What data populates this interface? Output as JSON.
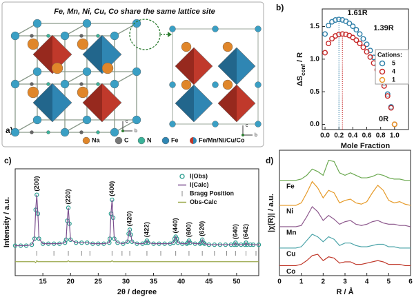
{
  "figure_a": {
    "panel_label": "a)",
    "title": "Fe, Mn, Ni, Cu, Co share the same lattice site",
    "legend": [
      "Na",
      "C",
      "N",
      "Fe",
      "Fe/Mn/Ni/Cu/Co"
    ],
    "left_axes": [
      "c",
      "b"
    ],
    "right_axes": [
      "c",
      "b"
    ]
  },
  "chart_data": [
    {
      "type": "scatter",
      "panel_label": "b)",
      "xlabel": "Mole Fraction",
      "ylabel": {
        "main": "ΔS",
        "sub": "conf",
        "tail": " / R"
      },
      "xlim": [
        -0.04,
        1.2
      ],
      "ylim": [
        -0.08,
        1.77
      ],
      "xticks": [
        {
          "value": 0,
          "label": "0.0"
        },
        0.2,
        0.4,
        0.6,
        0.8,
        {
          "value": 1,
          "label": "1.0"
        }
      ],
      "yticks": [
        {
          "value": 0,
          "label": "0.0"
        },
        0.5,
        {
          "value": 1,
          "label": "1.0"
        },
        1.5
      ],
      "legend_title": "Cations:",
      "legend": "right",
      "series": [
        {
          "name": "5",
          "color": "#2f7fa8",
          "x": [
            0,
            0.05,
            0.1,
            0.15,
            0.2,
            0.25,
            0.3,
            0.35,
            0.4,
            0.45,
            0.5,
            0.55,
            0.6,
            0.65,
            0.7,
            0.75,
            0.8,
            0.85,
            0.9,
            0.95,
            1
          ],
          "values": [
            1.386,
            1.516,
            1.573,
            1.601,
            1.609,
            1.602,
            1.581,
            1.549,
            1.505,
            1.451,
            1.386,
            1.312,
            1.228,
            1.133,
            1.027,
            0.909,
            0.778,
            0.631,
            0.464,
            0.268,
            0
          ]
        },
        {
          "name": "4",
          "color": "#c62828",
          "x": [
            0,
            0.05,
            0.1,
            0.15,
            0.2,
            0.25,
            0.3,
            0.35,
            0.4,
            0.45,
            0.5,
            0.55,
            0.6,
            0.65,
            0.7,
            0.75,
            0.8,
            0.85,
            0.9,
            0.95,
            1
          ],
          "values": [
            1.099,
            1.242,
            1.314,
            1.357,
            1.379,
            1.386,
            1.38,
            1.362,
            1.332,
            1.292,
            1.242,
            1.183,
            1.113,
            1.032,
            0.94,
            0.837,
            0.72,
            0.588,
            0.435,
            0.253,
            0
          ]
        },
        {
          "name": "1",
          "color": "#e8962a",
          "x": [
            1
          ],
          "values": [
            0
          ]
        }
      ],
      "annotations": [
        "1.61R",
        "1.39R",
        "0R"
      ],
      "reference_lines": [
        0.2,
        0.25
      ]
    },
    {
      "type": "line",
      "panel_label": "c)",
      "xlabel": "2θ / degree",
      "ylabel": "Intensity / a.u.",
      "xlim": [
        10,
        54
      ],
      "ylim": [
        0,
        1.07
      ],
      "xticks": [
        15,
        20,
        25,
        30,
        35,
        40,
        45,
        50
      ],
      "x": [
        10,
        11,
        12,
        13,
        13.5,
        13.7,
        13.9,
        14.1,
        14.3,
        15,
        16,
        17,
        18,
        19,
        19.2,
        19.4,
        19.6,
        19.8,
        20,
        21,
        22,
        23,
        24,
        25,
        26,
        27,
        27.1,
        27.3,
        27.5,
        27.7,
        27.9,
        28.5,
        29.5,
        30.3,
        30.5,
        30.7,
        30.9,
        31.1,
        32,
        33,
        33.6,
        33.8,
        34,
        35,
        36,
        37,
        38,
        38.6,
        38.8,
        39,
        39.2,
        39.4,
        40.2,
        41,
        41.2,
        41.4,
        41.6,
        42.5,
        43.4,
        43.6,
        43.8,
        44,
        44.2,
        45,
        46,
        47,
        48,
        49,
        49.6,
        49.8,
        50,
        50.8,
        51.5,
        51.7,
        51.9,
        52.5,
        53,
        54
      ],
      "series": [
        {
          "name": "I(Obs)",
          "color": "#2a9d8f",
          "style": "markers",
          "values": [
            0.3,
            0.3,
            0.3,
            0.31,
            0.37,
            0.66,
            0.81,
            0.62,
            0.37,
            0.32,
            0.32,
            0.32,
            0.32,
            0.33,
            0.36,
            0.55,
            0.68,
            0.52,
            0.36,
            0.33,
            0.33,
            0.33,
            0.32,
            0.32,
            0.32,
            0.33,
            0.37,
            0.62,
            0.76,
            0.58,
            0.37,
            0.33,
            0.32,
            0.34,
            0.42,
            0.46,
            0.41,
            0.34,
            0.32,
            0.32,
            0.33,
            0.35,
            0.33,
            0.32,
            0.32,
            0.32,
            0.32,
            0.33,
            0.37,
            0.39,
            0.37,
            0.33,
            0.32,
            0.32,
            0.33,
            0.35,
            0.33,
            0.32,
            0.32,
            0.33,
            0.36,
            0.33,
            0.32,
            0.31,
            0.31,
            0.31,
            0.31,
            0.31,
            0.31,
            0.33,
            0.31,
            0.31,
            0.31,
            0.33,
            0.31,
            0.31,
            0.31,
            0.31
          ]
        },
        {
          "name": "I(Calc)",
          "color": "#7b4f8e",
          "style": "line",
          "values": [
            0.3,
            0.3,
            0.3,
            0.31,
            0.37,
            0.66,
            0.81,
            0.62,
            0.37,
            0.32,
            0.32,
            0.32,
            0.32,
            0.33,
            0.36,
            0.55,
            0.68,
            0.52,
            0.36,
            0.33,
            0.33,
            0.33,
            0.32,
            0.32,
            0.32,
            0.33,
            0.37,
            0.62,
            0.76,
            0.58,
            0.37,
            0.33,
            0.32,
            0.34,
            0.42,
            0.46,
            0.41,
            0.34,
            0.32,
            0.32,
            0.33,
            0.35,
            0.33,
            0.32,
            0.32,
            0.32,
            0.32,
            0.33,
            0.37,
            0.39,
            0.37,
            0.33,
            0.32,
            0.32,
            0.33,
            0.35,
            0.33,
            0.32,
            0.32,
            0.33,
            0.36,
            0.33,
            0.32,
            0.31,
            0.31,
            0.31,
            0.31,
            0.31,
            0.31,
            0.33,
            0.31,
            0.31,
            0.31,
            0.33,
            0.31,
            0.31,
            0.31,
            0.31
          ]
        },
        {
          "name": "Bragg Position",
          "color": "#888888",
          "style": "ticks",
          "x": [
            13.9,
            17,
            19.6,
            22,
            23.5,
            27.5,
            29.3,
            30.7,
            33.8,
            36.3,
            39,
            41.4,
            43.8,
            46,
            48.2,
            49.8,
            51.7,
            53.5
          ]
        },
        {
          "name": "Obs-Calc",
          "color": "#9aa84a",
          "style": "line",
          "values": [
            0.14,
            0.14,
            0.14,
            0.14,
            0.14,
            0.13,
            0.15,
            0.14,
            0.14,
            0.14,
            0.14,
            0.14,
            0.14,
            0.14,
            0.14,
            0.14,
            0.15,
            0.14,
            0.14,
            0.14,
            0.14,
            0.14,
            0.14,
            0.14,
            0.14,
            0.14,
            0.14,
            0.14,
            0.15,
            0.14,
            0.14,
            0.14,
            0.14,
            0.14,
            0.14,
            0.14,
            0.14,
            0.14,
            0.14,
            0.14,
            0.14,
            0.14,
            0.14,
            0.14,
            0.14,
            0.14,
            0.14,
            0.14,
            0.14,
            0.14,
            0.14,
            0.14,
            0.14,
            0.14,
            0.14,
            0.14,
            0.14,
            0.14,
            0.14,
            0.14,
            0.14,
            0.14,
            0.14,
            0.14,
            0.14,
            0.14,
            0.14,
            0.14,
            0.14,
            0.14,
            0.14,
            0.14,
            0.14,
            0.14,
            0.14,
            0.14,
            0.14,
            0.14
          ]
        }
      ],
      "peak_labels": [
        "(200)",
        "(220)",
        "(400)",
        "(420)",
        "(422)",
        "(440)",
        "(600)",
        "(620)",
        "(640)",
        "(642)"
      ],
      "peak_x": [
        13.9,
        19.6,
        27.5,
        30.7,
        33.8,
        39,
        41.4,
        43.8,
        49.8,
        51.7
      ]
    },
    {
      "type": "line",
      "panel_label": "d)",
      "xlabel": "R / Å",
      "ylabel": "|χ(R)| / a.u.",
      "xlim": [
        0,
        6
      ],
      "ylim": [
        0,
        1
      ],
      "xticks": [
        0,
        1,
        2,
        3,
        4,
        5,
        6
      ],
      "x": [
        0,
        0.25,
        0.5,
        0.75,
        1,
        1.25,
        1.5,
        1.75,
        2,
        2.25,
        2.5,
        2.75,
        3,
        3.25,
        3.5,
        3.75,
        4,
        4.25,
        4.5,
        4.75,
        5,
        5.25,
        5.5,
        5.75,
        6
      ],
      "series": [
        {
          "name": "Fe",
          "color": "#6aa84f",
          "style": "line",
          "values": [
            0.76,
            0.76,
            0.76,
            0.76,
            0.77,
            0.8,
            0.85,
            0.83,
            0.8,
            0.92,
            0.91,
            0.82,
            0.8,
            0.82,
            0.8,
            0.78,
            0.78,
            0.79,
            0.81,
            0.8,
            0.78,
            0.77,
            0.77,
            0.76,
            0.76
          ]
        },
        {
          "name": "Ni",
          "color": "#e69a28",
          "style": "line",
          "values": [
            0.56,
            0.56,
            0.56,
            0.56,
            0.58,
            0.66,
            0.75,
            0.7,
            0.62,
            0.68,
            0.66,
            0.58,
            0.6,
            0.61,
            0.58,
            0.57,
            0.59,
            0.66,
            0.72,
            0.68,
            0.6,
            0.58,
            0.59,
            0.57,
            0.56
          ]
        },
        {
          "name": "Mn",
          "color": "#8e5a8e",
          "style": "line",
          "values": [
            0.39,
            0.39,
            0.39,
            0.39,
            0.4,
            0.47,
            0.55,
            0.51,
            0.44,
            0.48,
            0.45,
            0.41,
            0.43,
            0.44,
            0.41,
            0.4,
            0.41,
            0.43,
            0.44,
            0.42,
            0.41,
            0.41,
            0.4,
            0.4,
            0.39
          ]
        },
        {
          "name": "Cu",
          "color": "#4aa3a8",
          "style": "line",
          "values": [
            0.22,
            0.22,
            0.22,
            0.22,
            0.23,
            0.28,
            0.33,
            0.31,
            0.27,
            0.31,
            0.29,
            0.24,
            0.26,
            0.26,
            0.24,
            0.23,
            0.23,
            0.24,
            0.25,
            0.25,
            0.23,
            0.23,
            0.22,
            0.22,
            0.22
          ]
        },
        {
          "name": "Co",
          "color": "#c0392b",
          "style": "line",
          "values": [
            0.08,
            0.08,
            0.08,
            0.08,
            0.09,
            0.12,
            0.16,
            0.17,
            0.12,
            0.15,
            0.14,
            0.1,
            0.11,
            0.11,
            0.09,
            0.09,
            0.1,
            0.11,
            0.12,
            0.11,
            0.09,
            0.09,
            0.09,
            0.08,
            0.08
          ]
        }
      ]
    }
  ]
}
